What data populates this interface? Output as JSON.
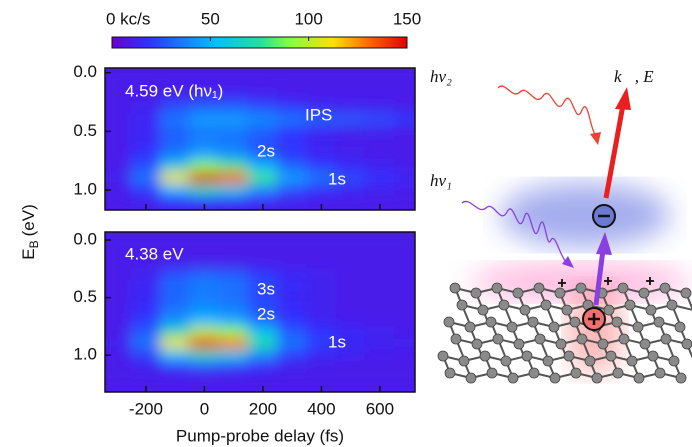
{
  "colorbar": {
    "lim": [
      0,
      150
    ],
    "ticks": [
      {
        "value": 0,
        "label": "0 kc/s"
      },
      50,
      100,
      150
    ]
  },
  "y_label": "E",
  "y_label_sub": "B",
  "y_label_unit": "(eV)",
  "x_label": "Pump-probe delay (fs)",
  "chart_data": [
    {
      "type": "heatmap",
      "x": [
        -300,
        -200,
        -100,
        0,
        100,
        200,
        300,
        400,
        500,
        600,
        700
      ],
      "y": [
        0.0,
        0.1,
        0.2,
        0.3,
        0.4,
        0.5,
        0.6,
        0.7,
        0.8,
        0.9,
        1.0,
        1.1
      ],
      "values": [
        [
          10,
          10,
          10,
          10,
          10,
          10,
          10,
          10,
          10,
          10,
          10
        ],
        [
          10,
          10,
          10,
          10,
          10,
          10,
          10,
          10,
          10,
          10,
          10
        ],
        [
          10,
          10,
          12,
          14,
          14,
          12,
          10,
          10,
          10,
          10,
          10
        ],
        [
          10,
          12,
          25,
          30,
          30,
          25,
          20,
          15,
          12,
          12,
          10
        ],
        [
          10,
          14,
          35,
          45,
          45,
          40,
          35,
          30,
          28,
          25,
          20
        ],
        [
          10,
          14,
          30,
          35,
          35,
          30,
          20,
          15,
          12,
          12,
          10
        ],
        [
          10,
          15,
          30,
          38,
          35,
          25,
          18,
          12,
          10,
          10,
          10
        ],
        [
          10,
          18,
          35,
          45,
          40,
          30,
          20,
          14,
          12,
          10,
          10
        ],
        [
          10,
          25,
          60,
          90,
          80,
          50,
          30,
          20,
          15,
          12,
          10
        ],
        [
          12,
          35,
          110,
          150,
          135,
          80,
          45,
          35,
          25,
          18,
          14
        ],
        [
          10,
          20,
          50,
          70,
          60,
          40,
          25,
          18,
          14,
          12,
          10
        ],
        [
          10,
          12,
          18,
          20,
          18,
          15,
          12,
          10,
          10,
          10,
          10
        ]
      ],
      "xlim": [
        -340,
        720
      ],
      "ylim": [
        -0.04,
        1.17
      ],
      "yticks": [
        {
          "value": 0,
          "label": "0.0"
        },
        0.5,
        {
          "value": 1,
          "label": "1.0"
        }
      ],
      "annotations": [
        "4.59 eV (hν₁)",
        "IPS",
        "2s",
        "1s"
      ]
    },
    {
      "type": "heatmap",
      "x": [
        -300,
        -200,
        -100,
        0,
        100,
        200,
        300,
        400,
        500,
        600,
        700
      ],
      "y": [
        0.0,
        0.1,
        0.2,
        0.3,
        0.4,
        0.5,
        0.6,
        0.7,
        0.8,
        0.9,
        1.0,
        1.1,
        1.2
      ],
      "values": [
        [
          10,
          10,
          10,
          10,
          10,
          10,
          10,
          10,
          10,
          10,
          10
        ],
        [
          10,
          10,
          10,
          10,
          10,
          10,
          10,
          10,
          10,
          10,
          10
        ],
        [
          10,
          10,
          10,
          10,
          10,
          10,
          10,
          10,
          10,
          10,
          10
        ],
        [
          10,
          12,
          25,
          30,
          28,
          20,
          14,
          12,
          10,
          10,
          10
        ],
        [
          10,
          14,
          32,
          38,
          35,
          25,
          16,
          12,
          10,
          10,
          10
        ],
        [
          10,
          15,
          30,
          35,
          32,
          22,
          15,
          12,
          10,
          10,
          10
        ],
        [
          10,
          16,
          34,
          42,
          38,
          26,
          16,
          12,
          10,
          10,
          10
        ],
        [
          10,
          20,
          40,
          50,
          45,
          30,
          18,
          13,
          11,
          10,
          10
        ],
        [
          10,
          28,
          70,
          100,
          90,
          55,
          28,
          18,
          14,
          12,
          10
        ],
        [
          12,
          35,
          110,
          145,
          130,
          75,
          35,
          22,
          16,
          13,
          12
        ],
        [
          10,
          22,
          55,
          70,
          60,
          40,
          22,
          15,
          12,
          11,
          10
        ],
        [
          10,
          12,
          20,
          25,
          22,
          16,
          12,
          10,
          10,
          10,
          10
        ],
        [
          10,
          10,
          10,
          10,
          10,
          10,
          10,
          10,
          10,
          10,
          10
        ]
      ],
      "xlim": [
        -340,
        720
      ],
      "ylim": [
        -0.07,
        1.32
      ],
      "xticks": [
        -200,
        0,
        200,
        400,
        600
      ],
      "yticks": [
        {
          "value": 0,
          "label": "0.0"
        },
        0.5,
        {
          "value": 1,
          "label": "1.0"
        }
      ],
      "annotations": [
        "4.38 eV",
        "3s",
        "2s",
        "1s"
      ]
    }
  ],
  "schematic": {
    "photon2": "hν₂",
    "electron": "k⃗, E",
    "photon1": "hν₁"
  }
}
